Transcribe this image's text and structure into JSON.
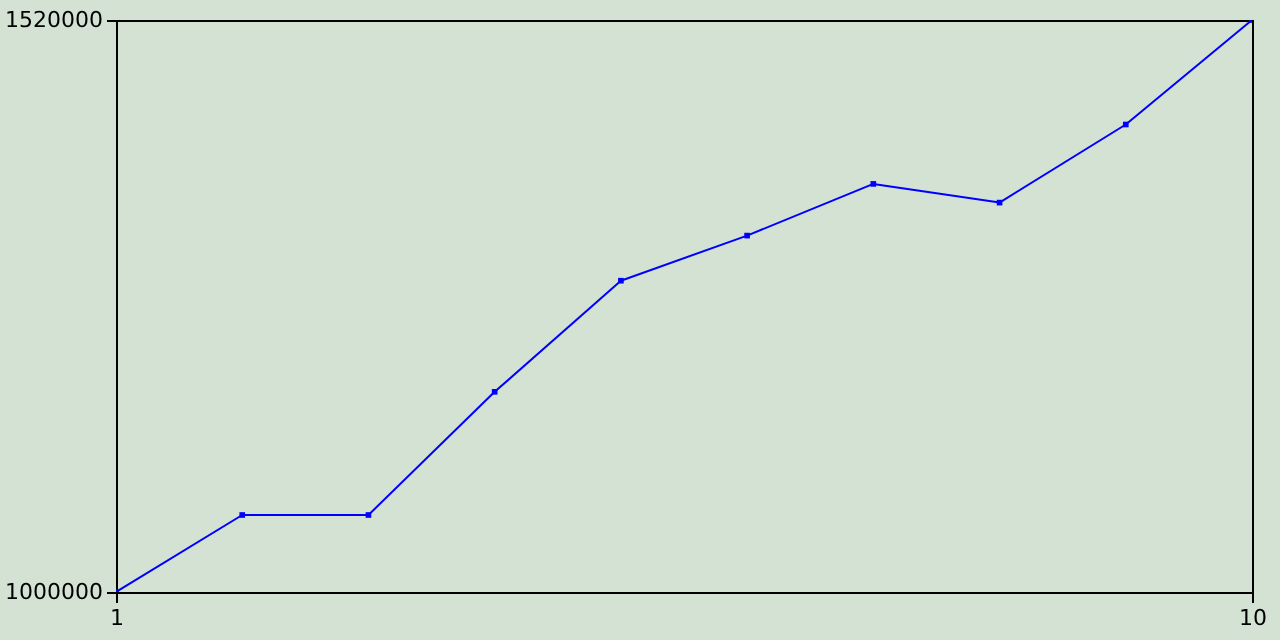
{
  "chart_data": {
    "type": "line",
    "x": [
      1,
      2,
      3,
      4,
      5,
      6,
      7,
      8,
      9,
      10
    ],
    "series": [
      {
        "color": "#0000ff",
        "values": [
          1000000,
          1070000,
          1070000,
          1182000,
          1283000,
          1324000,
          1371000,
          1354000,
          1425000,
          1520000
        ]
      }
    ],
    "xlim": [
      1,
      10
    ],
    "xticks": [
      1,
      10
    ],
    "ylim": [
      1000000,
      1520000
    ],
    "yticks": [
      1000000,
      1520000
    ],
    "marker": "square",
    "grid": false
  }
}
